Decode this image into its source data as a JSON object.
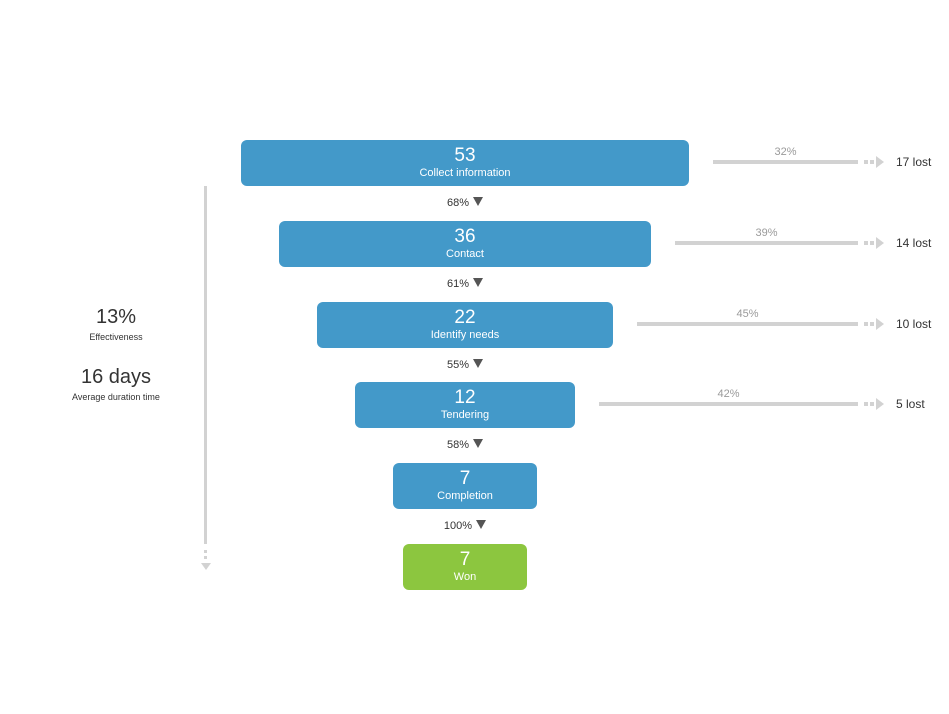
{
  "chart_data": {
    "type": "funnel",
    "stages": [
      {
        "value": "53",
        "label": "Collect information",
        "color": "#4399c9"
      },
      {
        "value": "36",
        "label": "Contact",
        "color": "#4399c9"
      },
      {
        "value": "22",
        "label": "Identify needs",
        "color": "#4399c9"
      },
      {
        "value": "12",
        "label": "Tendering",
        "color": "#4399c9"
      },
      {
        "value": "7",
        "label": "Completion",
        "color": "#4399c9"
      },
      {
        "value": "7",
        "label": "Won",
        "color": "#8cc63f"
      }
    ],
    "conversions": [
      "68%",
      "61%",
      "55%",
      "58%",
      "100%"
    ],
    "losses": [
      {
        "pct": "32%",
        "count": "17 lost"
      },
      {
        "pct": "39%",
        "count": "14 lost"
      },
      {
        "pct": "45%",
        "count": "10 lost"
      },
      {
        "pct": "42%",
        "count": "5 lost"
      }
    ]
  },
  "summary": {
    "effectiveness_value": "13%",
    "effectiveness_label": "Effectiveness",
    "duration_value": "16 days",
    "duration_label": "Average duration time"
  },
  "colors": {
    "stage": "#4399c9",
    "won": "#8cc63f",
    "connector": "#d2d2d2",
    "conversion_marker": "#555555"
  }
}
